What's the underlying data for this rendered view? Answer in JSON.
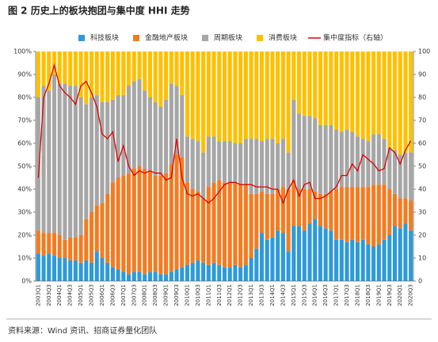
{
  "chart_data": {
    "type": "stacked_bar_line",
    "title": "图 2 历史上的板块抱团与集中度 HHI 走势",
    "source": "资料来源：Wind 资讯、招商证券量化团队",
    "categories": [
      "2003Q1",
      null,
      "2003Q3",
      null,
      "2004Q1",
      null,
      "2004Q3",
      null,
      "2005Q1",
      null,
      "2005Q3",
      null,
      "2006Q1",
      null,
      "2006Q3",
      null,
      "2007Q1",
      null,
      "2007Q3",
      null,
      "2008Q1",
      null,
      "2008Q3",
      null,
      "2009Q1",
      null,
      "2009Q3",
      null,
      "2010Q1",
      null,
      "2010Q3",
      null,
      "2011Q1",
      null,
      "2011Q3",
      null,
      "2012Q1",
      null,
      "2012Q3",
      null,
      "2013Q1",
      null,
      "2013Q3",
      null,
      "2014Q1",
      null,
      "2014Q3",
      null,
      "2015Q1",
      null,
      "2015Q3",
      null,
      "2016Q1",
      null,
      "2016Q3",
      null,
      "2017Q1",
      null,
      "2017Q3",
      null,
      "2018Q1",
      null,
      "2018Q3",
      null,
      "2019Q1",
      null,
      "2019Q3",
      null,
      "2020Q1",
      null,
      "2020Q3"
    ],
    "series": [
      {
        "name": "科技板块",
        "color": "#2e9ad8",
        "values": [
          12,
          11,
          12,
          11,
          10,
          10,
          9,
          9,
          8,
          9,
          8,
          13,
          10,
          8,
          6,
          5,
          4,
          3,
          4,
          4,
          3,
          4,
          4,
          3,
          3,
          4,
          5,
          6,
          7,
          8,
          9,
          8,
          7,
          8,
          7,
          6,
          6,
          7,
          6,
          7,
          10,
          14,
          21,
          18,
          19,
          22,
          21,
          13,
          24,
          24,
          22,
          25,
          27,
          24,
          23,
          22,
          18,
          18,
          17,
          18,
          17,
          18,
          16,
          15,
          16,
          18,
          20,
          24,
          23,
          25,
          22
        ]
      },
      {
        "name": "金融地产板块",
        "color": "#f47b20",
        "values": [
          10,
          10,
          9,
          10,
          10,
          8,
          10,
          10,
          12,
          18,
          22,
          20,
          24,
          30,
          37,
          40,
          42,
          44,
          45,
          46,
          46,
          44,
          42,
          43,
          44,
          47,
          50,
          48,
          36,
          32,
          30,
          28,
          34,
          35,
          37,
          37,
          37,
          36,
          36,
          35,
          28,
          24,
          18,
          20,
          19,
          18,
          20,
          27,
          20,
          16,
          18,
          15,
          12,
          14,
          15,
          17,
          22,
          23,
          24,
          23,
          24,
          23,
          25,
          27,
          26,
          24,
          20,
          14,
          13,
          11,
          13
        ]
      },
      {
        "name": "周期板块",
        "color": "#a6a6a6",
        "values": [
          58,
          64,
          62,
          69,
          66,
          68,
          66,
          66,
          60,
          50,
          50,
          48,
          44,
          40,
          36,
          36,
          35,
          38,
          38,
          38,
          34,
          32,
          32,
          30,
          32,
          35,
          30,
          27,
          20,
          22,
          22,
          20,
          22,
          20,
          17,
          18,
          18,
          17,
          18,
          20,
          24,
          24,
          22,
          24,
          24,
          20,
          21,
          16,
          35,
          33,
          32,
          32,
          32,
          30,
          30,
          29,
          26,
          24,
          25,
          24,
          22,
          21,
          20,
          22,
          22,
          20,
          18,
          19,
          19,
          20,
          21
        ]
      },
      {
        "name": "消费板块",
        "color": "#ffc000",
        "values": [
          20,
          15,
          17,
          10,
          14,
          14,
          15,
          15,
          20,
          23,
          20,
          19,
          22,
          22,
          21,
          19,
          19,
          15,
          13,
          12,
          17,
          20,
          22,
          24,
          21,
          14,
          15,
          19,
          37,
          38,
          39,
          44,
          37,
          37,
          39,
          39,
          39,
          40,
          40,
          38,
          38,
          38,
          39,
          38,
          38,
          40,
          38,
          44,
          21,
          27,
          28,
          28,
          29,
          32,
          32,
          32,
          34,
          35,
          34,
          35,
          37,
          38,
          39,
          36,
          36,
          38,
          42,
          43,
          45,
          44,
          44
        ]
      },
      {
        "name": "集中度指标（右轴）",
        "color": "#e00000",
        "axis": "y2",
        "values": [
          45,
          80,
          86,
          94,
          85,
          82,
          80,
          77,
          85,
          87,
          82,
          76,
          64,
          62,
          65,
          52,
          59,
          50,
          46,
          48,
          47,
          48,
          47,
          47,
          44,
          45,
          62,
          45,
          38,
          37,
          38,
          36,
          34,
          36,
          39,
          42,
          43,
          43,
          42,
          42,
          42,
          41,
          41,
          41,
          40,
          40,
          34,
          40,
          44,
          37,
          42,
          43,
          36,
          36,
          37,
          39,
          41,
          46,
          46,
          51,
          48,
          55,
          53,
          51,
          48,
          49,
          58,
          56,
          51,
          57,
          61
        ]
      }
    ],
    "ylim": [
      0,
      100
    ],
    "yticks": [
      {
        "value": 0,
        "label": "0%"
      },
      {
        "value": 10,
        "label": "10%"
      },
      {
        "value": 20,
        "label": "20%"
      },
      {
        "value": 30,
        "label": "30%"
      },
      {
        "value": 40,
        "label": "40%"
      },
      {
        "value": 50,
        "label": "50%"
      },
      {
        "value": 60,
        "label": "60%"
      },
      {
        "value": 70,
        "label": "70%"
      },
      {
        "value": 80,
        "label": "80%"
      },
      {
        "value": 90,
        "label": "90%"
      },
      {
        "value": 100,
        "label": "100%"
      }
    ],
    "y2lim": [
      0,
      100
    ],
    "y2ticks": [
      0,
      10,
      20,
      30,
      40,
      50,
      60,
      70,
      80,
      90,
      100
    ]
  }
}
